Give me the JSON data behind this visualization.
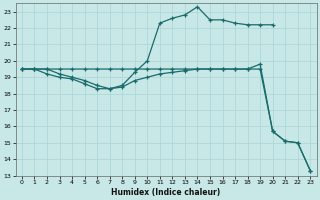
{
  "xlabel": "Humidex (Indice chaleur)",
  "xlim": [
    -0.5,
    23.5
  ],
  "ylim": [
    13,
    23.5
  ],
  "yticks": [
    13,
    14,
    15,
    16,
    17,
    18,
    19,
    20,
    21,
    22,
    23
  ],
  "xticks": [
    0,
    1,
    2,
    3,
    4,
    5,
    6,
    7,
    8,
    9,
    10,
    11,
    12,
    13,
    14,
    15,
    16,
    17,
    18,
    19,
    20,
    21,
    22,
    23
  ],
  "bg_color": "#c8e8e8",
  "line_color": "#1a6b6b",
  "grid_color": "#aad4d4",
  "lines": [
    {
      "x": [
        0,
        1,
        2,
        3,
        4,
        5,
        6,
        7,
        8,
        9,
        10,
        11,
        12,
        13,
        14,
        15,
        16,
        17,
        18,
        19,
        20
      ],
      "y": [
        19.5,
        19.5,
        19.5,
        19.2,
        19.0,
        18.8,
        18.5,
        18.3,
        18.5,
        19.3,
        20.0,
        22.3,
        22.6,
        22.8,
        23.3,
        22.5,
        22.5,
        22.3,
        22.2,
        22.2,
        22.2
      ]
    },
    {
      "x": [
        0,
        1,
        2,
        3,
        4,
        5,
        6,
        7,
        8,
        9,
        10,
        11,
        12,
        13,
        14,
        15,
        16,
        17,
        18,
        19,
        20,
        21,
        22,
        23
      ],
      "y": [
        19.5,
        19.5,
        19.5,
        19.5,
        19.5,
        19.5,
        19.5,
        19.5,
        19.5,
        19.5,
        19.5,
        19.5,
        19.5,
        19.5,
        19.5,
        19.5,
        19.5,
        19.5,
        19.5,
        19.8,
        15.7,
        15.1,
        15.0,
        13.3
      ]
    },
    {
      "x": [
        0,
        1,
        2,
        3,
        4,
        5,
        6,
        7,
        8,
        9,
        10,
        11,
        12,
        13,
        14,
        15,
        16,
        17,
        18,
        19,
        20,
        21,
        22,
        23
      ],
      "y": [
        19.5,
        19.5,
        19.2,
        19.0,
        18.9,
        18.6,
        18.3,
        18.3,
        18.4,
        18.8,
        19.0,
        19.2,
        19.3,
        19.4,
        19.5,
        19.5,
        19.5,
        19.5,
        19.5,
        19.5,
        15.7,
        15.1,
        15.0,
        13.3
      ]
    }
  ]
}
